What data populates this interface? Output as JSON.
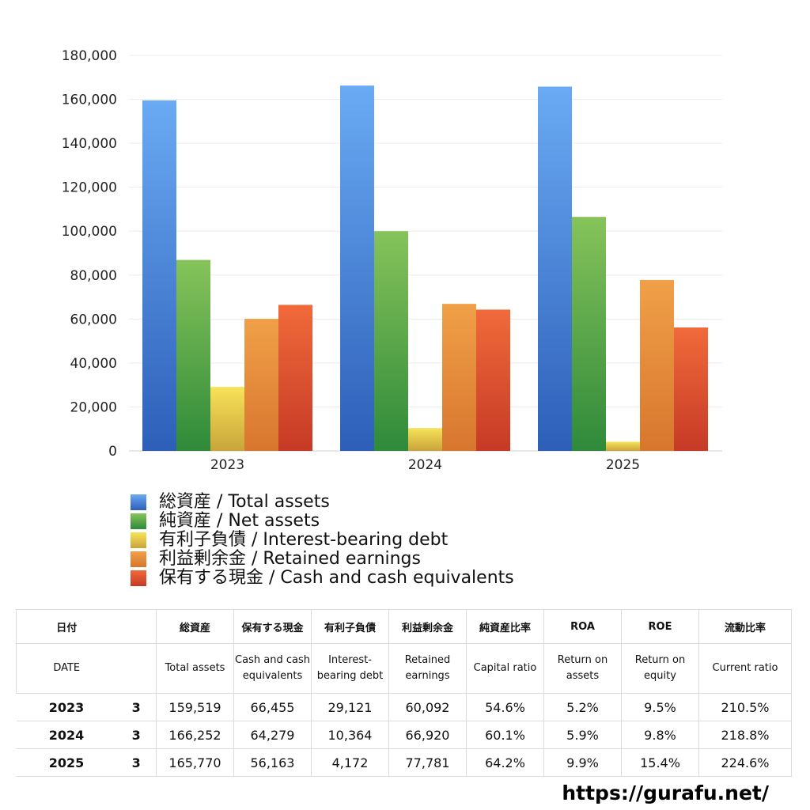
{
  "chart_data": {
    "type": "bar",
    "categories": [
      "2023",
      "2024",
      "2025"
    ],
    "ylim": [
      0,
      180000
    ],
    "yticks": [
      "0",
      "20,000",
      "40,000",
      "60,000",
      "80,000",
      "100,000",
      "120,000",
      "140,000",
      "160,000",
      "180,000"
    ],
    "grid": true,
    "legend_position": "bottom",
    "series": [
      {
        "name": "総資産 / Total assets",
        "values": [
          159519,
          166252,
          165770
        ],
        "color_top": "#6aaaf4",
        "color_bottom": "#2d5fb8"
      },
      {
        "name": "純資産 / Net assets",
        "values": [
          86900,
          100000,
          106500
        ],
        "color_top": "#86c35a",
        "color_bottom": "#2f8a3a"
      },
      {
        "name": "有利子負債 / Interest-bearing debt",
        "values": [
          29121,
          10364,
          4172
        ],
        "color_top": "#f7e35a",
        "color_bottom": "#c9a43a"
      },
      {
        "name": "利益剰余金 / Retained earnings",
        "values": [
          60092,
          66920,
          77781
        ],
        "color_top": "#f0a048",
        "color_bottom": "#d8762e"
      },
      {
        "name": "保有する現金 /  Cash and cash equivalents",
        "values": [
          66455,
          64279,
          56163
        ],
        "color_top": "#f06a3a",
        "color_bottom": "#c63a26"
      }
    ]
  },
  "table": {
    "header_jp": {
      "date": "日付",
      "total_assets": "総資産",
      "cash": "保有する現金",
      "debt": "有利子負債",
      "retained": "利益剰余金",
      "capital_ratio": "純資産比率",
      "roa": "ROA",
      "roe": "ROE",
      "current_ratio": "流動比率"
    },
    "header_en": {
      "date": "DATE",
      "total_assets": "Total assets",
      "cash": "Cash and cash equivalents",
      "debt": "Interest-bearing debt",
      "retained": "Retained earnings",
      "capital_ratio": "Capital ratio",
      "roa": "Return on assets",
      "roe": "Return on equity",
      "current_ratio": "Current ratio"
    },
    "rows": [
      {
        "year": "2023",
        "month": "3",
        "total_assets": "159,519",
        "cash": "66,455",
        "debt": "29,121",
        "retained": "60,092",
        "capital_ratio": "54.6%",
        "roa": "5.2%",
        "roe": "9.5%",
        "current_ratio": "210.5%"
      },
      {
        "year": "2024",
        "month": "3",
        "total_assets": "166,252",
        "cash": "64,279",
        "debt": "10,364",
        "retained": "66,920",
        "capital_ratio": "60.1%",
        "roa": "5.9%",
        "roe": "9.8%",
        "current_ratio": "218.8%"
      },
      {
        "year": "2025",
        "month": "3",
        "total_assets": "165,770",
        "cash": "56,163",
        "debt": "4,172",
        "retained": "77,781",
        "capital_ratio": "64.2%",
        "roa": "9.9%",
        "roe": "15.4%",
        "current_ratio": "224.6%"
      }
    ]
  },
  "footer": {
    "url": "https://gurafu.net/"
  }
}
